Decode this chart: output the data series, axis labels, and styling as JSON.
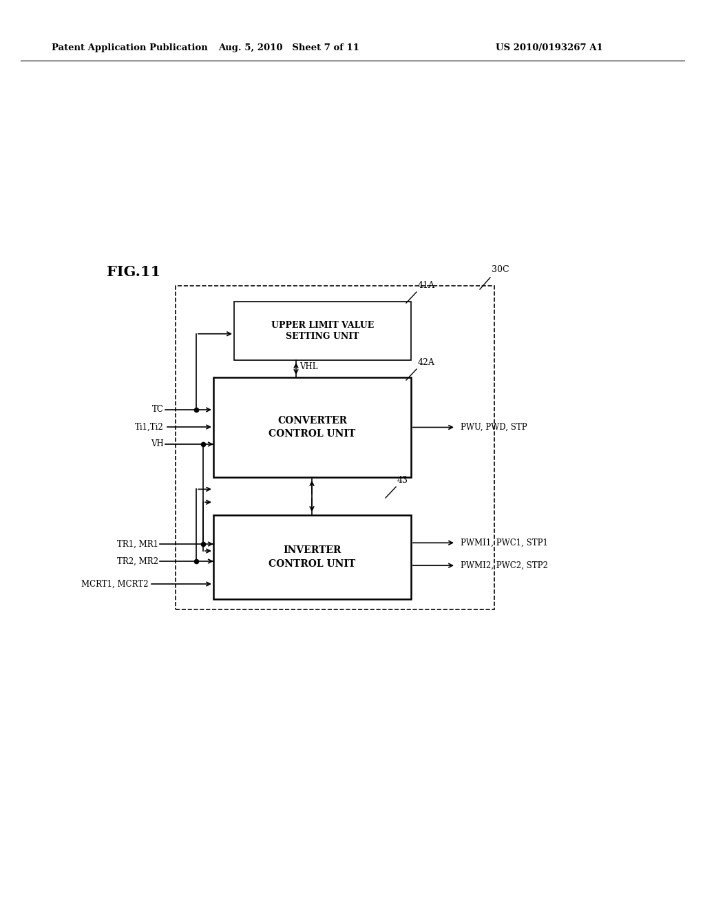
{
  "background_color": "#ffffff",
  "page_header_left": "Patent Application Publication",
  "page_header_center": "Aug. 5, 2010   Sheet 7 of 11",
  "page_header_right": "US 2010/0193267 A1",
  "fig_label": "FIG.11",
  "outer_box_label": "30C",
  "box_41A_label": "41A",
  "box_41A_text": "UPPER LIMIT VALUE\nSETTING UNIT",
  "box_42A_label": "42A",
  "box_42A_text": "CONVERTER\nCONTROL UNIT",
  "box_43_label": "43",
  "box_43_text": "INVERTER\nCONTROL UNIT",
  "vhl_label": "VHL",
  "input_tc": "TC",
  "input_ti": "Ti1,Ti2",
  "input_vh": "VH",
  "input_tr1": "TR1, MR1",
  "input_tr2": "TR2, MR2",
  "input_mcrt": "MCRT1, MCRT2",
  "output_converter": "PWU, PWD, STP",
  "output_inverter1": "PWMI1, PWC1, STP1",
  "output_inverter2": "PWMI2, PWC2, STP2"
}
